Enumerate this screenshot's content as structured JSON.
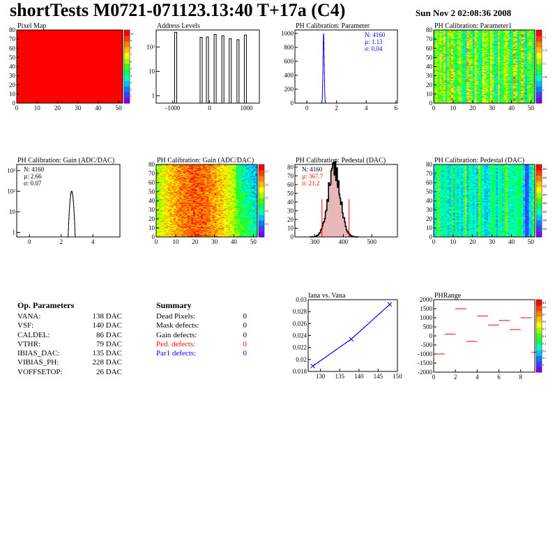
{
  "header": {
    "title": "shortTests M0721-071123.13:40 T+17a (C4)",
    "date": "Sun Nov  2 02:08:36 2008"
  },
  "colors": {
    "palette": [
      "#7f00ff",
      "#3f3fff",
      "#0080ff",
      "#00c0ff",
      "#00ffc0",
      "#00ff60",
      "#40ff00",
      "#a0ff00",
      "#ffff00",
      "#ffc000",
      "#ff8000",
      "#ff4000",
      "#ff0000"
    ],
    "blue": "#0000ff",
    "red": "#ff0000"
  },
  "chart_data": [
    {
      "id": "pixel-map",
      "type": "heatmap",
      "title": "Pixel Map",
      "xticks": [
        "0",
        "10",
        "20",
        "30",
        "40",
        "50"
      ],
      "yticks": [
        "0",
        "10",
        "20",
        "30",
        "40",
        "50",
        "60",
        "70",
        "80"
      ],
      "xlim": [
        0,
        52
      ],
      "ylim": [
        0,
        80
      ],
      "uniform_value": 10,
      "zticks": [
        "1",
        "2",
        "3",
        "4",
        "5",
        "6",
        "7",
        "8",
        "9",
        "10"
      ]
    },
    {
      "id": "address-levels",
      "type": "histogram",
      "title": "Address Levels",
      "log_y": true,
      "xticks": [
        "-1000",
        "0",
        "1000"
      ],
      "yticks": [
        "1",
        "10",
        "10²"
      ],
      "xlim": [
        -1450,
        1350
      ],
      "ylim_log": [
        0.5,
        500
      ],
      "peaks": [
        {
          "x": -920,
          "h": 400
        },
        {
          "x": -230,
          "h": 250
        },
        {
          "x": -60,
          "h": 260
        },
        {
          "x": 150,
          "h": 330
        },
        {
          "x": 360,
          "h": 290
        },
        {
          "x": 560,
          "h": 220
        },
        {
          "x": 770,
          "h": 200
        },
        {
          "x": 970,
          "h": 310
        }
      ]
    },
    {
      "id": "ph-param",
      "type": "histogram",
      "title": "PH Calibration: Parameter",
      "xticks": [
        "0",
        "2",
        "4",
        "6"
      ],
      "yticks": [
        "0",
        "200",
        "400",
        "600",
        "800",
        "1000"
      ],
      "xlim": [
        -0.8,
        6.1
      ],
      "ylim": [
        0,
        1050
      ],
      "stats": [
        {
          "label": "N: 4160",
          "color": "#0000ff"
        },
        {
          "label": "µ: 1.13",
          "color": "#0000ff"
        },
        {
          "label": "σ: 0.04",
          "color": "#0000ff"
        }
      ],
      "gauss": {
        "mean": 1.13,
        "sigma": 0.04,
        "peak": 1000
      }
    },
    {
      "id": "ph-param1-map",
      "type": "heatmap",
      "title": "PH Calibration: Parameter1",
      "xticks": [
        "0",
        "10",
        "20",
        "30",
        "40",
        "50"
      ],
      "yticks": [
        "0",
        "10",
        "20",
        "30",
        "40",
        "50",
        "60",
        "70",
        "80"
      ],
      "xlim": [
        0,
        52
      ],
      "ylim": [
        0,
        80
      ],
      "zticks": [
        "1",
        "1.05",
        "1.1",
        "1.15",
        "1.2"
      ]
    },
    {
      "id": "gain-hist",
      "type": "histogram",
      "title": "PH Calibration: Gain (ADC/DAC)",
      "log_y": true,
      "xticks": [
        "0",
        "2",
        "4"
      ],
      "yticks": [
        "1",
        "10",
        "10²",
        "10³"
      ],
      "xlim": [
        -0.8,
        5.7
      ],
      "ylim_log": [
        0.6,
        2000
      ],
      "stats": [
        {
          "label": "N: 4160",
          "color": "#000000"
        },
        {
          "label": "µ: 2.66",
          "color": "#000000"
        },
        {
          "label": "σ: 0.07",
          "color": "#000000"
        }
      ],
      "gauss": {
        "mean": 2.66,
        "sigma": 0.07,
        "peak": 100
      }
    },
    {
      "id": "gain-map",
      "type": "heatmap",
      "title": "PH Calibration: Gain (ADC/DAC)",
      "xticks": [
        "0",
        "10",
        "20",
        "30",
        "40",
        "50"
      ],
      "yticks": [
        "0",
        "10",
        "20",
        "30",
        "40",
        "50",
        "60",
        "70",
        "80"
      ],
      "xlim": [
        0,
        52
      ],
      "ylim": [
        0,
        80
      ],
      "zticks": [
        "2.3",
        "2.4",
        "2.5",
        "2.6",
        "2.7"
      ]
    },
    {
      "id": "pedestal-hist",
      "type": "histogram",
      "title": "PH Calibration: Pedestal (DAC)",
      "xticks": [
        "300",
        "400",
        "500"
      ],
      "yticks": [
        "0",
        "10",
        "20",
        "30",
        "40",
        "50",
        "60",
        "70",
        "80"
      ],
      "xlim": [
        230,
        590
      ],
      "ylim": [
        0,
        83
      ],
      "stats": [
        {
          "label": "N: 4160",
          "color": "#000000"
        },
        {
          "label": "µ: 367.7",
          "color": "#ff0000"
        },
        {
          "label": "σ: 21.2",
          "color": "#ff0000"
        }
      ],
      "gauss": {
        "mean": 367.7,
        "sigma": 21.2,
        "peak": 79
      },
      "cut_lines": [
        325,
        420
      ]
    },
    {
      "id": "pedestal-map",
      "type": "heatmap",
      "title": "PH Calibration: Pedestal (DAC)",
      "xticks": [
        "0",
        "10",
        "20",
        "30",
        "40",
        "50"
      ],
      "yticks": [
        "0",
        "10",
        "20",
        "30",
        "40",
        "50",
        "60",
        "70",
        "80"
      ],
      "xlim": [
        0,
        52
      ],
      "ylim": [
        0,
        80
      ],
      "zticks": [
        "320",
        "340",
        "360",
        "380",
        "400",
        "420",
        "440",
        "460"
      ]
    },
    {
      "id": "iana-vana",
      "type": "line",
      "title": "Iana vs. Vana",
      "x": [
        128,
        138,
        148
      ],
      "y": [
        0.0189,
        0.0234,
        0.0292
      ],
      "xticks": [
        "130",
        "135",
        "140",
        "145",
        "150"
      ],
      "yticks": [
        "0.018",
        "0.02",
        "0.022",
        "0.024",
        "0.026",
        "0.028",
        "0.03"
      ],
      "xlim": [
        126.8,
        150
      ],
      "ylim": [
        0.018,
        0.03
      ]
    },
    {
      "id": "ph-range",
      "type": "scatter",
      "title": "PHRange",
      "x": [
        0,
        1,
        2,
        3,
        4,
        5,
        6,
        7,
        8,
        9
      ],
      "y": [
        -1000,
        100,
        1500,
        -300,
        1100,
        600,
        850,
        350,
        1000,
        -900
      ],
      "xticks": [
        "0",
        "2",
        "4",
        "6",
        "8"
      ],
      "yticks": [
        "2000",
        "1500",
        "1000",
        "500",
        "0",
        "-500",
        "-1000",
        "-1500",
        "-2000"
      ],
      "xlim": [
        0,
        9.3
      ],
      "ylim": [
        -2000,
        2000
      ],
      "zticks": [
        "0",
        "0.1",
        "0.2",
        "0.3",
        "0.4",
        "0.5",
        "0.6",
        "0.7",
        "0.8",
        "0.9",
        "1"
      ]
    }
  ],
  "op_params": {
    "heading": "Op. Parameters",
    "rows": [
      {
        "name": "VANA:",
        "value": "138 DAC"
      },
      {
        "name": "VSF:",
        "value": "140 DAC"
      },
      {
        "name": "CALDEL:",
        "value": "86 DAC"
      },
      {
        "name": "VTHR:",
        "value": "79 DAC"
      },
      {
        "name": "IBIAS_DAC:",
        "value": "135 DAC"
      },
      {
        "name": "VIBIAS_PH:",
        "value": "228 DAC"
      },
      {
        "name": "VOFFSETOP:",
        "value": "26 DAC"
      }
    ]
  },
  "summary": {
    "heading": "Summary",
    "rows": [
      {
        "name": "Dead Pixels:",
        "value": "0",
        "color": "#000000"
      },
      {
        "name": "Mask defects:",
        "value": "0",
        "color": "#000000"
      },
      {
        "name": "Gain defects:",
        "value": "0",
        "color": "#000000"
      },
      {
        "name": "Ped. defects:",
        "value": "0",
        "color": "#ff0000"
      },
      {
        "name": "Par1 defects:",
        "value": "0",
        "color": "#0000ff"
      }
    ]
  }
}
